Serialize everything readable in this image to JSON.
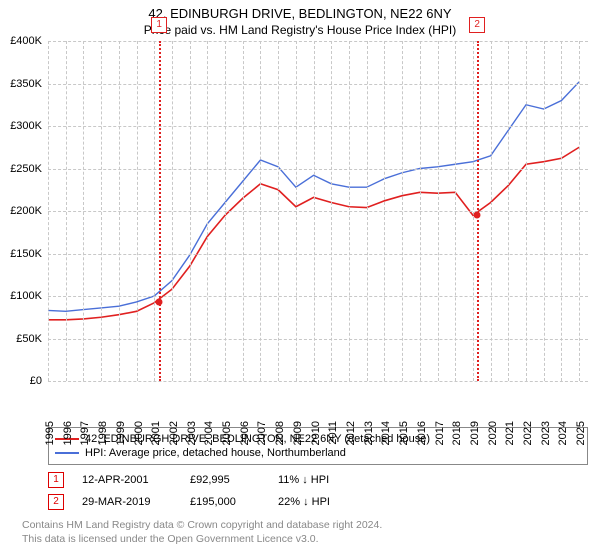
{
  "title": "42, EDINBURGH DRIVE, BEDLINGTON, NE22 6NY",
  "subtitle": "Price paid vs. HM Land Registry's House Price Index (HPI)",
  "chart": {
    "type": "line",
    "ylim": [
      0,
      400000
    ],
    "ytick_step": 50000,
    "ytick_labels": [
      "£0",
      "£50K",
      "£100K",
      "£150K",
      "£200K",
      "£250K",
      "£300K",
      "£350K",
      "£400K"
    ],
    "xlim": [
      1995,
      2025.5
    ],
    "xtick_years": [
      1995,
      1996,
      1997,
      1998,
      1999,
      2000,
      2001,
      2002,
      2003,
      2004,
      2005,
      2006,
      2007,
      2008,
      2009,
      2010,
      2011,
      2012,
      2013,
      2014,
      2015,
      2016,
      2017,
      2018,
      2019,
      2020,
      2021,
      2022,
      2023,
      2024,
      2025
    ],
    "grid_color": "#c8c8c8",
    "background_color": "#ffffff",
    "series": {
      "property": {
        "label": "42, EDINBURGH DRIVE, BEDLINGTON, NE22 6NY (detached house)",
        "color": "#e02020",
        "line_width": 1.6,
        "data": [
          [
            1995,
            72000
          ],
          [
            1996,
            72000
          ],
          [
            1997,
            73000
          ],
          [
            1998,
            75000
          ],
          [
            1999,
            78000
          ],
          [
            2000,
            82000
          ],
          [
            2001,
            92000
          ],
          [
            2002,
            108000
          ],
          [
            2003,
            135000
          ],
          [
            2004,
            170000
          ],
          [
            2005,
            195000
          ],
          [
            2006,
            215000
          ],
          [
            2007,
            232000
          ],
          [
            2008,
            225000
          ],
          [
            2009,
            205000
          ],
          [
            2010,
            216000
          ],
          [
            2011,
            210000
          ],
          [
            2012,
            205000
          ],
          [
            2013,
            204000
          ],
          [
            2014,
            212000
          ],
          [
            2015,
            218000
          ],
          [
            2016,
            222000
          ],
          [
            2017,
            221000
          ],
          [
            2018,
            222000
          ],
          [
            2019,
            195000
          ],
          [
            2020,
            210000
          ],
          [
            2021,
            230000
          ],
          [
            2022,
            255000
          ],
          [
            2023,
            258000
          ],
          [
            2024,
            262000
          ],
          [
            2025,
            275000
          ]
        ]
      },
      "hpi": {
        "label": "HPI: Average price, detached house, Northumberland",
        "color": "#4a6fd8",
        "line_width": 1.4,
        "data": [
          [
            1995,
            83000
          ],
          [
            1996,
            82000
          ],
          [
            1997,
            84000
          ],
          [
            1998,
            86000
          ],
          [
            1999,
            88000
          ],
          [
            2000,
            93000
          ],
          [
            2001,
            100000
          ],
          [
            2002,
            118000
          ],
          [
            2003,
            148000
          ],
          [
            2004,
            185000
          ],
          [
            2005,
            210000
          ],
          [
            2006,
            235000
          ],
          [
            2007,
            260000
          ],
          [
            2008,
            252000
          ],
          [
            2009,
            228000
          ],
          [
            2010,
            242000
          ],
          [
            2011,
            232000
          ],
          [
            2012,
            228000
          ],
          [
            2013,
            228000
          ],
          [
            2014,
            238000
          ],
          [
            2015,
            245000
          ],
          [
            2016,
            250000
          ],
          [
            2017,
            252000
          ],
          [
            2018,
            255000
          ],
          [
            2019,
            258000
          ],
          [
            2020,
            265000
          ],
          [
            2021,
            295000
          ],
          [
            2022,
            325000
          ],
          [
            2023,
            320000
          ],
          [
            2024,
            330000
          ],
          [
            2025,
            352000
          ]
        ]
      }
    },
    "markers": [
      {
        "n": "1",
        "x": 2001.28,
        "color": "#e02020"
      },
      {
        "n": "2",
        "x": 2019.24,
        "color": "#e02020"
      }
    ],
    "sale_points": [
      {
        "x": 2001.28,
        "y": 92995,
        "color": "#e02020"
      },
      {
        "x": 2019.24,
        "y": 195000,
        "color": "#e02020"
      }
    ]
  },
  "legend": {
    "items": [
      {
        "color": "#e02020",
        "label_path": "chart.series.property.label"
      },
      {
        "color": "#4a6fd8",
        "label_path": "chart.series.hpi.label"
      }
    ]
  },
  "transactions": [
    {
      "n": "1",
      "date": "12-APR-2001",
      "price": "£92,995",
      "diff": "11% ↓ HPI"
    },
    {
      "n": "2",
      "date": "29-MAR-2019",
      "price": "£195,000",
      "diff": "22% ↓ HPI"
    }
  ],
  "licence_line1": "Contains HM Land Registry data © Crown copyright and database right 2024.",
  "licence_line2": "This data is licensed under the Open Government Licence v3.0."
}
